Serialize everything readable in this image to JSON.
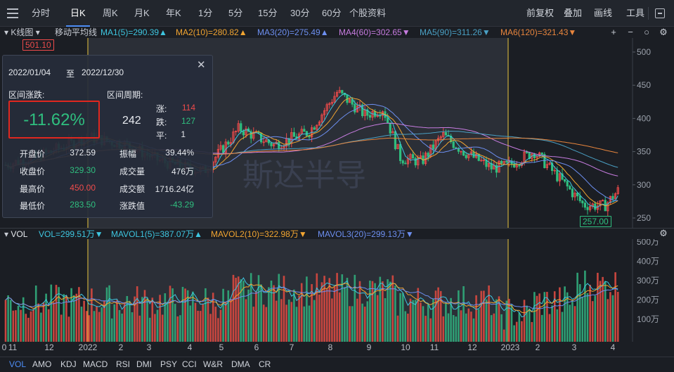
{
  "toolbar": {
    "periods": [
      "分时",
      "日K",
      "周K",
      "月K",
      "年K",
      "1分",
      "5分",
      "15分",
      "30分",
      "60分",
      "个股资料"
    ],
    "active_period": "日K",
    "right": [
      "前复权",
      "叠加",
      "画线",
      "工具"
    ]
  },
  "ma_legend": {
    "kline_label": "K线图",
    "ma_type": "移动平均线",
    "items": [
      {
        "text": "MA1(5)=290.39▲",
        "color": "#3ec6e0"
      },
      {
        "text": "MA2(10)=280.82▲",
        "color": "#f2a531"
      },
      {
        "text": "MA3(20)=275.49▲",
        "color": "#6d8ff0"
      },
      {
        "text": "MA4(60)=302.65▼",
        "color": "#c77ce0"
      },
      {
        "text": "MA5(90)=311.26▼",
        "color": "#4aa0c4"
      },
      {
        "text": "MA6(120)=321.43▼",
        "color": "#e8853d"
      }
    ],
    "controls": [
      "+",
      "−",
      "○",
      "⚙"
    ]
  },
  "price_axis": [
    "500",
    "450",
    "400",
    "350",
    "300",
    "250"
  ],
  "badges": {
    "high": "501.10",
    "low": "257.00"
  },
  "watermark": "斯达半导",
  "stats_panel": {
    "from": "2022/01/04",
    "to_word": "至",
    "to": "2022/12/30",
    "change_label": "区间涨跌:",
    "period_label": "区间周期:",
    "change_pct": "-11.62%",
    "days": "242",
    "up_label": "涨:",
    "up": "114",
    "down_label": "跌:",
    "down": "127",
    "flat_label": "平:",
    "flat": "1",
    "rows_left": [
      {
        "label": "开盘价",
        "value": "372.59",
        "tone": "white"
      },
      {
        "label": "收盘价",
        "value": "329.30",
        "tone": "green"
      },
      {
        "label": "最高价",
        "value": "450.00",
        "tone": "red"
      },
      {
        "label": "最低价",
        "value": "283.50",
        "tone": "green"
      }
    ],
    "rows_right": [
      {
        "label": "振幅",
        "value": "39.44%",
        "tone": "white"
      },
      {
        "label": "成交量",
        "value": "476万",
        "tone": "white"
      },
      {
        "label": "成交额",
        "value": "1716.24亿",
        "tone": "white"
      },
      {
        "label": "涨跌值",
        "value": "-43.29",
        "tone": "green"
      }
    ]
  },
  "vol_legend": [
    {
      "text": "VOL",
      "color": "#e6e9ee"
    },
    {
      "text": "VOL=299.51万▼",
      "color": "#3ec6e0"
    },
    {
      "text": "MAVOL1(5)=387.07万▲",
      "color": "#3ec6e0"
    },
    {
      "text": "MAVOL2(10)=322.98万▼",
      "color": "#f2a531"
    },
    {
      "text": "MAVOL3(20)=299.13万▼",
      "color": "#6d8ff0"
    }
  ],
  "vol_axis": [
    "500万",
    "400万",
    "300万",
    "200万",
    "100万"
  ],
  "x_axis": [
    "0",
    "11",
    "12",
    "2022",
    "2",
    "3",
    "4",
    "5",
    "6",
    "7",
    "8",
    "9",
    "10",
    "11",
    "12",
    "2023",
    "2",
    "3",
    "4"
  ],
  "indicators": [
    "VOL",
    "AMO",
    "KDJ",
    "MACD",
    "RSI",
    "DMI",
    "PSY",
    "CCI",
    "W&R",
    "DMA",
    "CR"
  ],
  "active_indicator": "VOL",
  "colors": {
    "up": "#ee4b4b",
    "down": "#2fbf7f",
    "marker": "#e9c63f",
    "bg": "#1b1e24",
    "shade": "#2b2f37"
  }
}
